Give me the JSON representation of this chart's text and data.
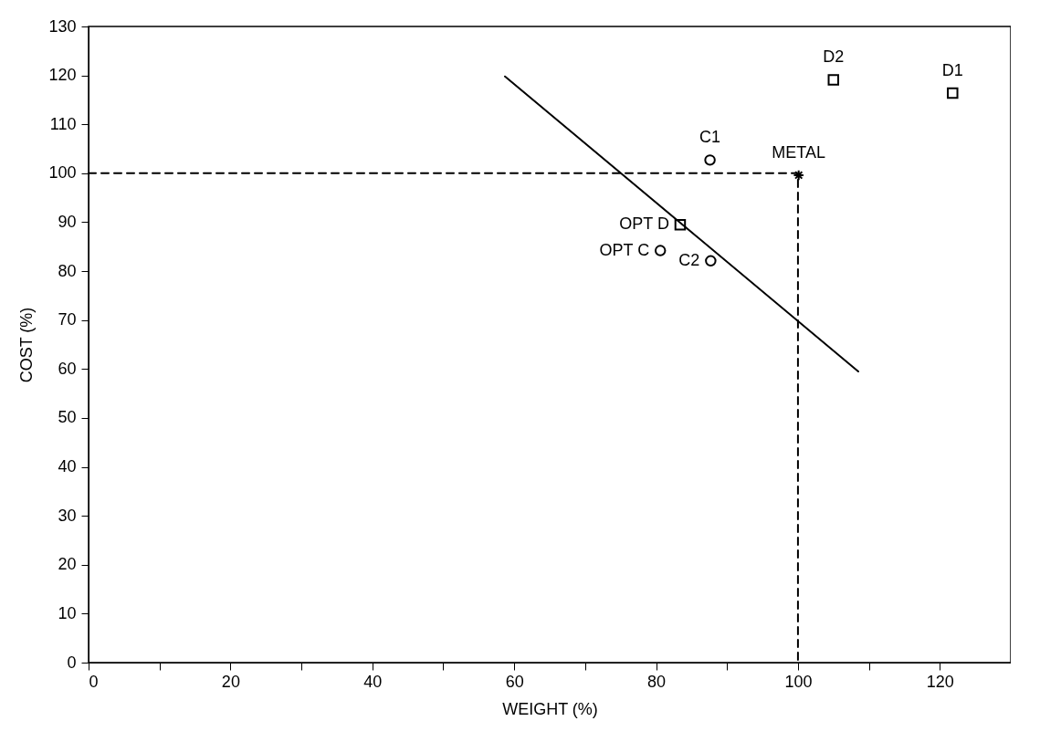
{
  "chart_data": {
    "type": "scatter",
    "xlabel": "WEIGHT (%)",
    "ylabel": "COST (%)",
    "xlim": [
      0,
      130
    ],
    "ylim": [
      0,
      130
    ],
    "xticks": [
      0,
      {
        "value": 10,
        "label": null
      },
      20,
      {
        "value": 30,
        "label": null
      },
      40,
      {
        "value": 50,
        "label": null
      },
      60,
      {
        "value": 70,
        "label": null
      },
      80,
      {
        "value": 90,
        "label": null
      },
      100,
      {
        "value": 110,
        "label": null
      },
      120
    ],
    "yticks": [
      0,
      10,
      20,
      30,
      40,
      50,
      60,
      70,
      80,
      90,
      100,
      110,
      120,
      130
    ],
    "grid": false,
    "series": [
      {
        "type": "line",
        "line_style": "dashed",
        "color": "#000000",
        "x": [
          0,
          100,
          100
        ],
        "values": [
          100,
          100,
          0
        ]
      },
      {
        "type": "line",
        "line_style": "solid",
        "color": "#000000",
        "x": [
          58.7,
          108.5
        ],
        "values": [
          119.8,
          59.5
        ]
      },
      {
        "marker": "circle",
        "color": "#000000",
        "x": [
          87.6,
          87.7
        ],
        "values": [
          102.7,
          82.1
        ]
      },
      {
        "marker": "square",
        "color": "#000000",
        "x": [
          105,
          121.8
        ],
        "values": [
          119.1,
          116.4
        ]
      },
      {
        "marker": "square",
        "color": "#000000",
        "x": [
          83.4
        ],
        "values": [
          89.5
        ]
      },
      {
        "marker": "circle",
        "color": "#000000",
        "x": [
          80.6
        ],
        "values": [
          84.2
        ]
      },
      {
        "marker": "cross",
        "color": "#000000",
        "x": [
          100.1
        ],
        "values": [
          99.6
        ]
      }
    ],
    "annotations": [
      {
        "text": "C1",
        "x": 87.6,
        "y": 102.7
      },
      {
        "text": "C2",
        "x": 87.7,
        "y": 82.1
      },
      {
        "text": "METAL",
        "x": 100.1,
        "y": 99.6
      },
      {
        "text": "D2",
        "x": 105,
        "y": 119.1
      },
      {
        "text": "D1",
        "x": 121.8,
        "y": 116.4
      },
      {
        "text": "OPT D",
        "x": 83.4,
        "y": 89.5
      },
      {
        "text": "OPT C",
        "x": 80.6,
        "y": 84.2
      }
    ]
  }
}
